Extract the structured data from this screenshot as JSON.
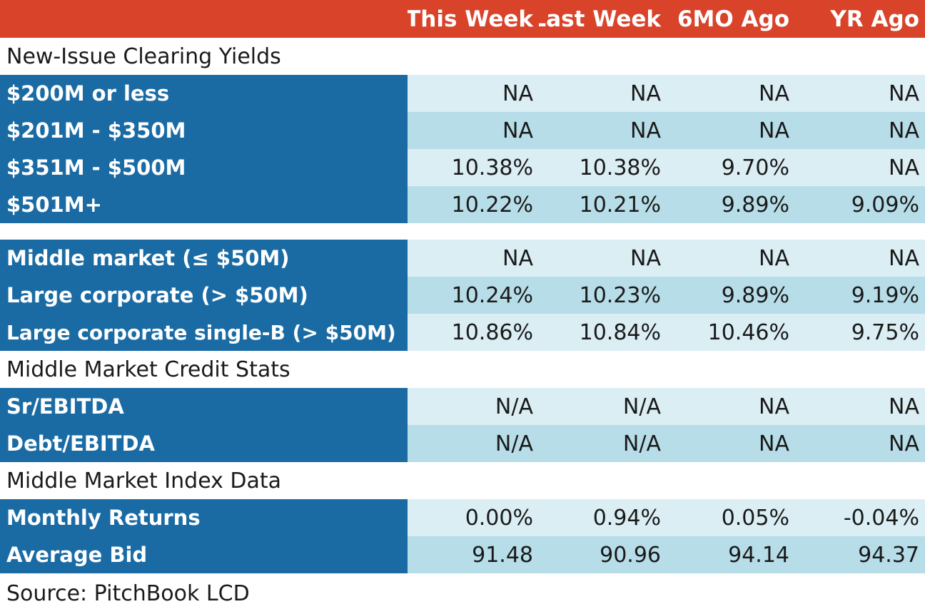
{
  "chart_data": {
    "type": "table",
    "columns": [
      "This Week",
      "Last Week",
      "6MO Ago",
      "YR Ago"
    ],
    "sections": [
      {
        "title": "New-Issue Clearing Yields",
        "rows": [
          {
            "label": "$200M or less",
            "values": [
              "NA",
              "NA",
              "NA",
              "NA"
            ]
          },
          {
            "label": "$201M - $350M",
            "values": [
              "NA",
              "NA",
              "NA",
              "NA"
            ]
          },
          {
            "label": "$351M - $500M",
            "values": [
              "10.38%",
              "10.38%",
              "9.70%",
              "NA"
            ]
          },
          {
            "label": "$501M+",
            "values": [
              "10.22%",
              "10.21%",
              "9.89%",
              "9.09%"
            ]
          }
        ]
      },
      {
        "title": "",
        "rows": [
          {
            "label": "Middle market (≤ $50M)",
            "values": [
              "NA",
              "NA",
              "NA",
              "NA"
            ]
          },
          {
            "label": "Large corporate (> $50M)",
            "values": [
              "10.24%",
              "10.23%",
              "9.89%",
              "9.19%"
            ]
          },
          {
            "label": "Large corporate single-B (> $50M)",
            "values": [
              "10.86%",
              "10.84%",
              "10.46%",
              "9.75%"
            ]
          }
        ]
      },
      {
        "title": "Middle Market Credit Stats",
        "rows": [
          {
            "label": "Sr/EBITDA",
            "values": [
              "N/A",
              "N/A",
              "NA",
              "NA"
            ]
          },
          {
            "label": "Debt/EBITDA",
            "values": [
              "N/A",
              "N/A",
              "NA",
              "NA"
            ]
          }
        ]
      },
      {
        "title": "Middle Market Index Data",
        "rows": [
          {
            "label": "Monthly Returns",
            "values": [
              "0.00%",
              "0.94%",
              "0.05%",
              "-0.04%"
            ]
          },
          {
            "label": "Average Bid",
            "values": [
              "91.48",
              "90.96",
              "94.14",
              "94.37"
            ]
          }
        ]
      }
    ],
    "source": "Source: PitchBook LCD"
  },
  "colors": {
    "header_bg": "#d8432a",
    "label_bg": "#1a6ba4",
    "row_light": "#daeef4",
    "row_dark": "#b7dde8"
  }
}
